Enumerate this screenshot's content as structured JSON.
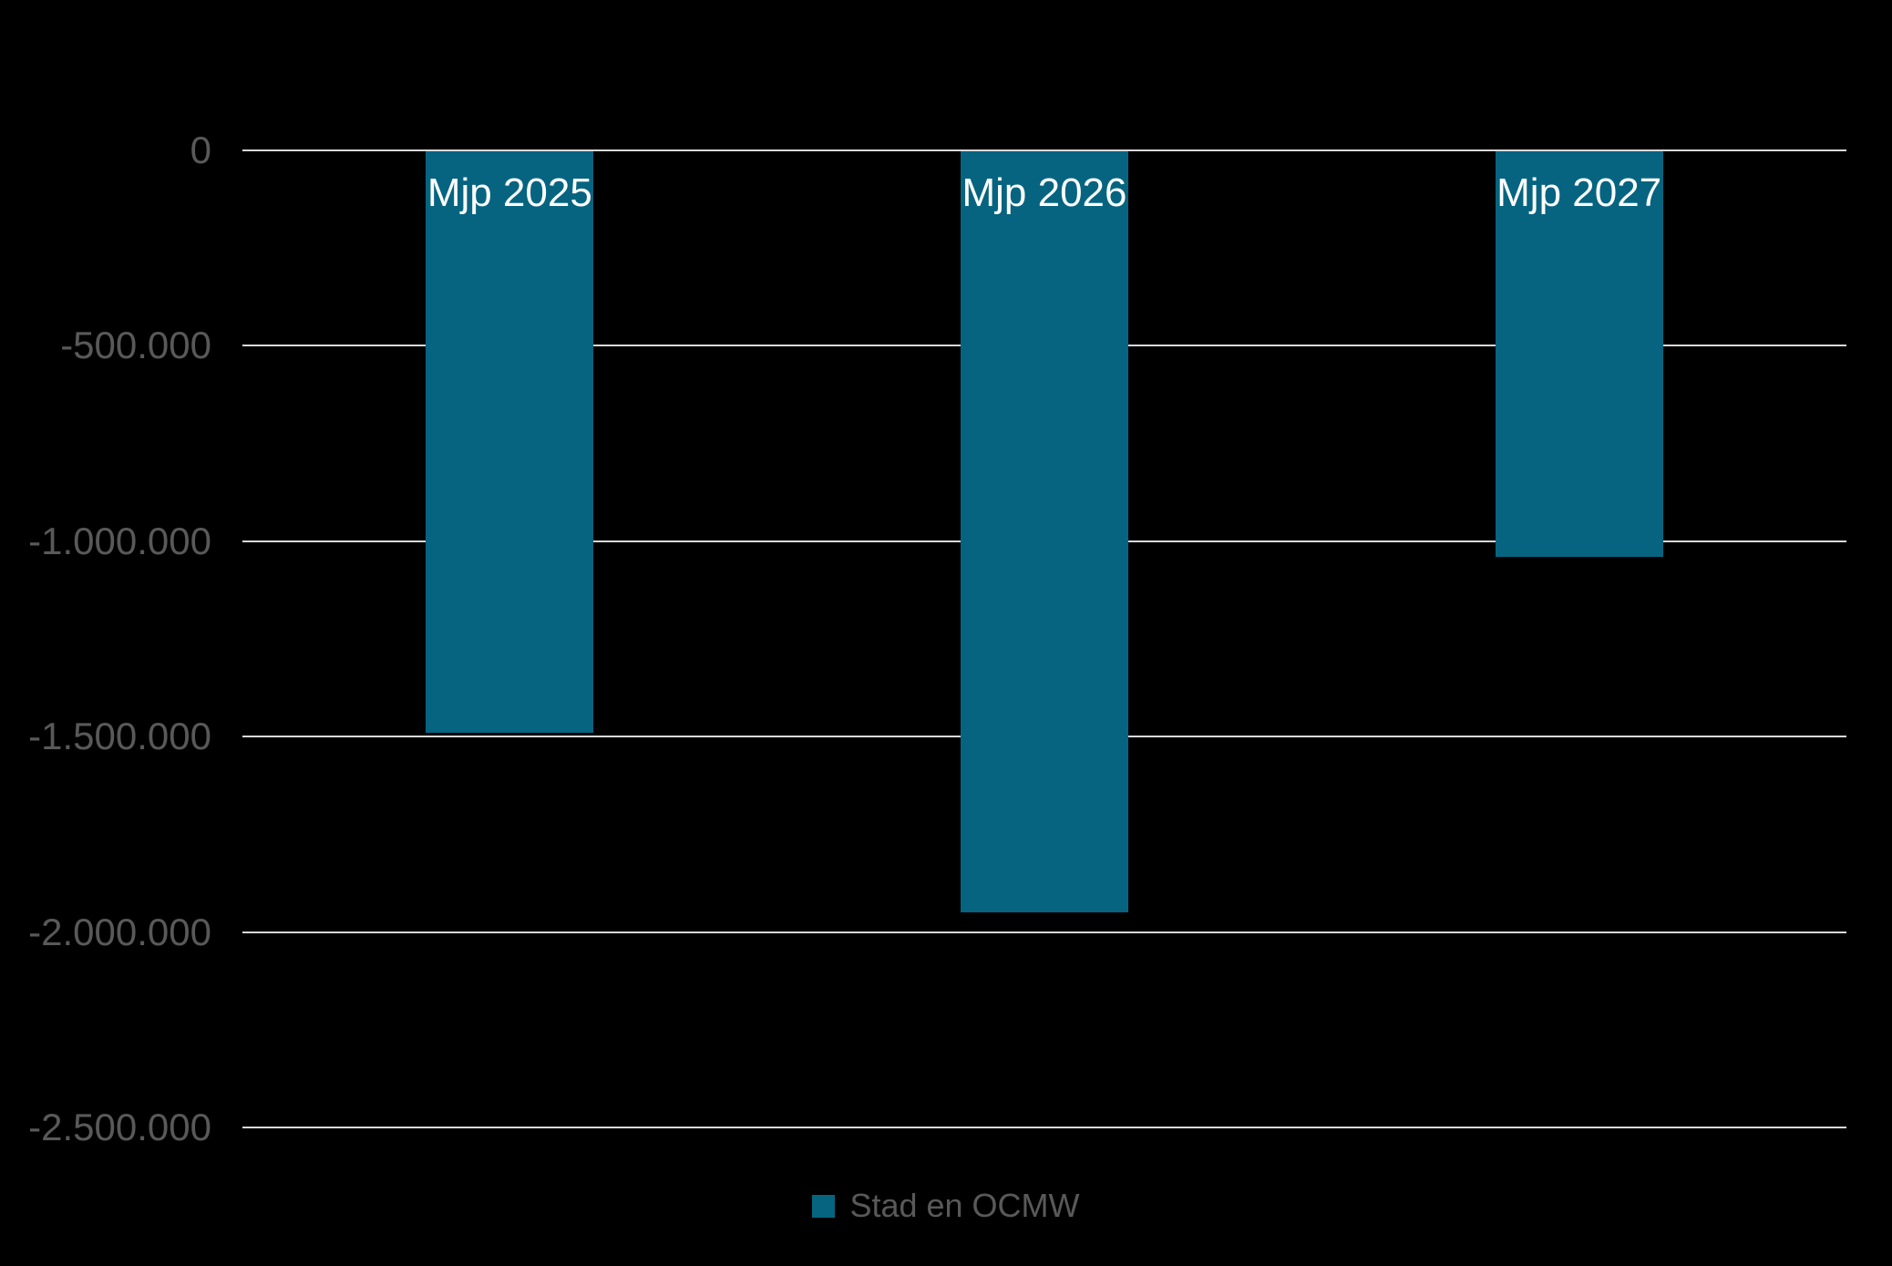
{
  "background_color": "#000000",
  "chart_data": {
    "type": "bar",
    "title": "",
    "categories": [
      "Mjp 2025",
      "Mjp 2026",
      "Mjp 2027"
    ],
    "series": [
      {
        "name": "Stad en OCMW",
        "color": "#066480",
        "values": [
          -1490000,
          -1950000,
          -1040000
        ]
      }
    ],
    "ylim": [
      -2500000,
      0
    ],
    "yticks": [
      0,
      -500000,
      -1000000,
      -1500000,
      -2000000,
      -2500000
    ],
    "ytick_labels": [
      "0",
      "-500.000",
      "-1.000.000",
      "-1.500.000",
      "-2.000.000",
      "-2.500.000"
    ],
    "xlabel": "",
    "ylabel": "",
    "grid": true,
    "gridline_color": "#D9D9D9",
    "axis_label_color": "#595959",
    "bar_label_color": "#FFFFFF",
    "bar_labels_inside_top": true,
    "legend": {
      "position": "bottom",
      "items": [
        {
          "label": "Stad en OCMW",
          "swatch_color": "#066480"
        }
      ]
    }
  }
}
